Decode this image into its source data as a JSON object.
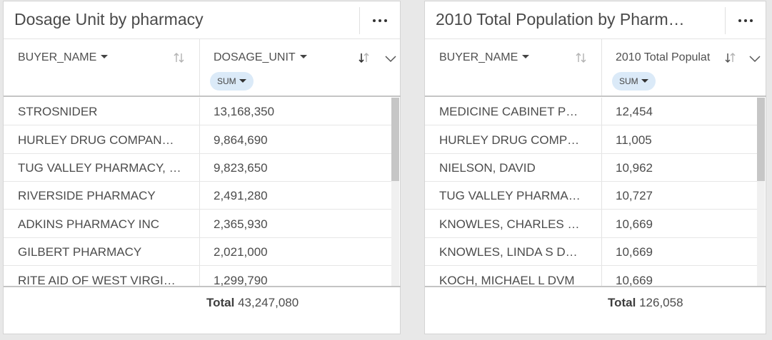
{
  "cards": [
    {
      "title": "Dosage Unit by pharmacy",
      "more_icon": "more-horizontal-icon",
      "columns": [
        {
          "label": "BUYER_NAME",
          "sort_icon": "sort-arrows-icon"
        },
        {
          "label": "DOSAGE_UNIT",
          "sort_icon": "sort-desc-icon",
          "aggregation": "SUM",
          "expand_icon": "chevron-down-icon"
        }
      ],
      "rows": [
        [
          "STROSNIDER",
          "13,168,350"
        ],
        [
          "HURLEY DRUG COMPAN…",
          "9,864,690"
        ],
        [
          "TUG VALLEY PHARMACY, …",
          "9,823,650"
        ],
        [
          "RIVERSIDE PHARMACY",
          "2,491,280"
        ],
        [
          "ADKINS PHARMACY INC",
          "2,365,930"
        ],
        [
          "GILBERT PHARMACY",
          "2,021,000"
        ],
        [
          "RITE AID OF WEST VIRGI…",
          "1,299,790"
        ]
      ],
      "total_label": "Total",
      "total_value": "43,247,080"
    },
    {
      "title": "2010 Total Population by Pharm…",
      "more_icon": "more-horizontal-icon",
      "columns": [
        {
          "label": "BUYER_NAME",
          "sort_icon": "sort-arrows-icon"
        },
        {
          "label": "2010 Total Populat",
          "sort_icon": "sort-desc-icon",
          "aggregation": "SUM",
          "expand_icon": "chevron-down-icon"
        }
      ],
      "rows": [
        [
          "MEDICINE CABINET P…",
          "12,454"
        ],
        [
          "HURLEY DRUG COMP…",
          "11,005"
        ],
        [
          "NIELSON, DAVID",
          "10,962"
        ],
        [
          "TUG VALLEY PHARMA…",
          "10,727"
        ],
        [
          "KNOWLES, CHARLES …",
          "10,669"
        ],
        [
          "KNOWLES, LINDA S D…",
          "10,669"
        ],
        [
          "KOCH, MICHAEL L DVM",
          "10,669"
        ]
      ],
      "total_label": "Total",
      "total_value": "126,058"
    }
  ],
  "colors": {
    "background": "#e8e8e8",
    "card": "#ffffff",
    "pill": "#dbeaf8",
    "text": "#4c4c4c",
    "scroll_thumb": "#c6c6c6"
  }
}
